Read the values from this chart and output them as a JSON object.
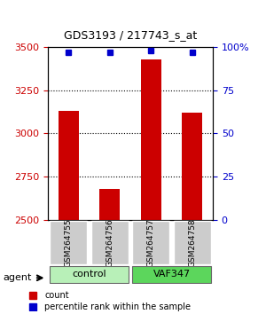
{
  "title": "GDS3193 / 217743_s_at",
  "samples": [
    "GSM264755",
    "GSM264756",
    "GSM264757",
    "GSM264758"
  ],
  "counts": [
    3130,
    2680,
    3430,
    3120
  ],
  "percentiles": [
    97,
    97,
    98,
    97
  ],
  "groups": [
    "control",
    "control",
    "VAF347",
    "VAF347"
  ],
  "group_colors": [
    "#90EE90",
    "#90EE90",
    "#4CAF50",
    "#4CAF50"
  ],
  "bar_color": "#CC0000",
  "percentile_color": "#0000CC",
  "ylim_left": [
    2500,
    3500
  ],
  "ylim_right": [
    0,
    100
  ],
  "yticks_left": [
    2500,
    2750,
    3000,
    3250,
    3500
  ],
  "yticks_right": [
    0,
    25,
    50,
    75,
    100
  ],
  "ytick_labels_right": [
    "0",
    "25",
    "50",
    "75",
    "100%"
  ],
  "grid_ticks": [
    2750,
    3000,
    3250
  ],
  "left_tick_color": "#CC0000",
  "right_tick_color": "#0000CC",
  "group_label_control": "control",
  "group_label_vaf": "VAF347",
  "agent_label": "agent",
  "legend_count_label": "count",
  "legend_pct_label": "percentile rank within the sample",
  "bar_width": 0.5,
  "control_color": "#b8f0b8",
  "vaf_color": "#5cd65c",
  "sample_box_color": "#cccccc"
}
